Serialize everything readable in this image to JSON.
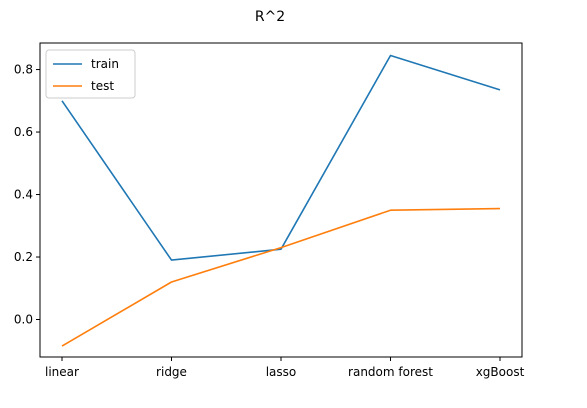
{
  "chart_data": {
    "type": "line",
    "title": "R^2",
    "xlabel": "",
    "ylabel": "",
    "categories": [
      "linear",
      "ridge",
      "lasso",
      "random forest",
      "xgBoost"
    ],
    "series": [
      {
        "name": "train",
        "color": "#1f77b4",
        "values": [
          0.7,
          0.19,
          0.225,
          0.845,
          0.735
        ]
      },
      {
        "name": "test",
        "color": "#ff7f0e",
        "values": [
          -0.085,
          0.12,
          0.23,
          0.35,
          0.355
        ]
      }
    ],
    "ylim": [
      -0.12,
      0.885
    ],
    "yticks": [
      0.0,
      0.2,
      0.4,
      0.6,
      0.8
    ],
    "ytick_labels": [
      "0.0",
      "0.2",
      "0.4",
      "0.6",
      "0.8"
    ],
    "grid": false,
    "legend_position": "upper-left"
  }
}
